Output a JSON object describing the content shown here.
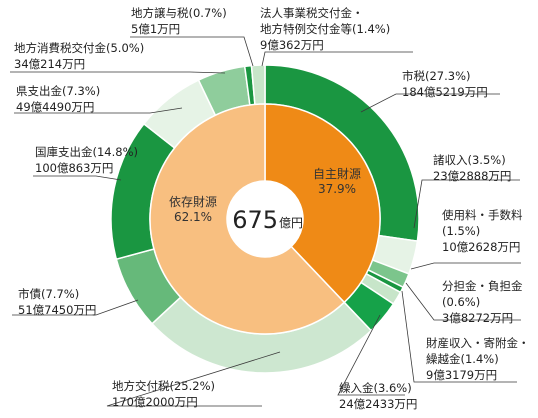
{
  "chart_data": {
    "type": "pie",
    "center": {
      "value": "675",
      "unit": "億円"
    },
    "inner": [
      {
        "name": "自主財源",
        "pct": "37.9%",
        "value": 37.9,
        "color": "#ef8a16"
      },
      {
        "name": "依存財源",
        "pct": "62.1%",
        "value": 62.1,
        "color": "#f8bf80"
      }
    ],
    "outer": [
      {
        "line1": "市税(27.3%)",
        "line2": "184億5219万円",
        "value": 27.3,
        "color": "#1a9641"
      },
      {
        "line1": "諸収入(3.5%)",
        "line2": "23億2888万円",
        "value": 3.5,
        "color": "#e6f3e6"
      },
      {
        "line1": "使用料・手数料",
        "line2": "(1.5%)",
        "line3": "10億2628万円",
        "value": 1.5,
        "color": "#7cc58c"
      },
      {
        "line1": "分担金・負担金",
        "line2": "(0.6%)",
        "line3": "3億8272万円",
        "value": 0.6,
        "color": "#1a9641"
      },
      {
        "line1": "財産収入・寄附金・",
        "line2": "繰越金(1.4%)",
        "line3": "9億3179万円",
        "value": 1.4,
        "color": "#c7e5c9"
      },
      {
        "line1": "繰入金(3.6%)",
        "line2": "24億2433万円",
        "value": 3.6,
        "color": "#16a249"
      },
      {
        "line1": "地方交付税(25.2%)",
        "line2": "170億2000万円",
        "value": 25.2,
        "color": "#cde7d0"
      },
      {
        "line1": "市債(7.7%)",
        "line2": "51億7450万円",
        "value": 7.7,
        "color": "#66b97a"
      },
      {
        "line1": "国庫支出金(14.8%)",
        "line2": "100億863万円",
        "value": 14.8,
        "color": "#1a9641"
      },
      {
        "line1": "県支出金(7.3%)",
        "line2": "49億4490万円",
        "value": 7.3,
        "color": "#e6f3e6"
      },
      {
        "line1": "地方消費税交付金(5.0%)",
        "line2": "34億214万円",
        "value": 5.0,
        "color": "#8fcd9c"
      },
      {
        "line1": "地方譲与税(0.7%)",
        "line2": "5億1万円",
        "value": 0.7,
        "color": "#1a9641"
      },
      {
        "line1": "法人事業税交付金・",
        "line2": "地方特例交付金等(1.4%)",
        "line3": "9億362万円",
        "value": 1.4,
        "color": "#c7e5c9"
      }
    ]
  }
}
